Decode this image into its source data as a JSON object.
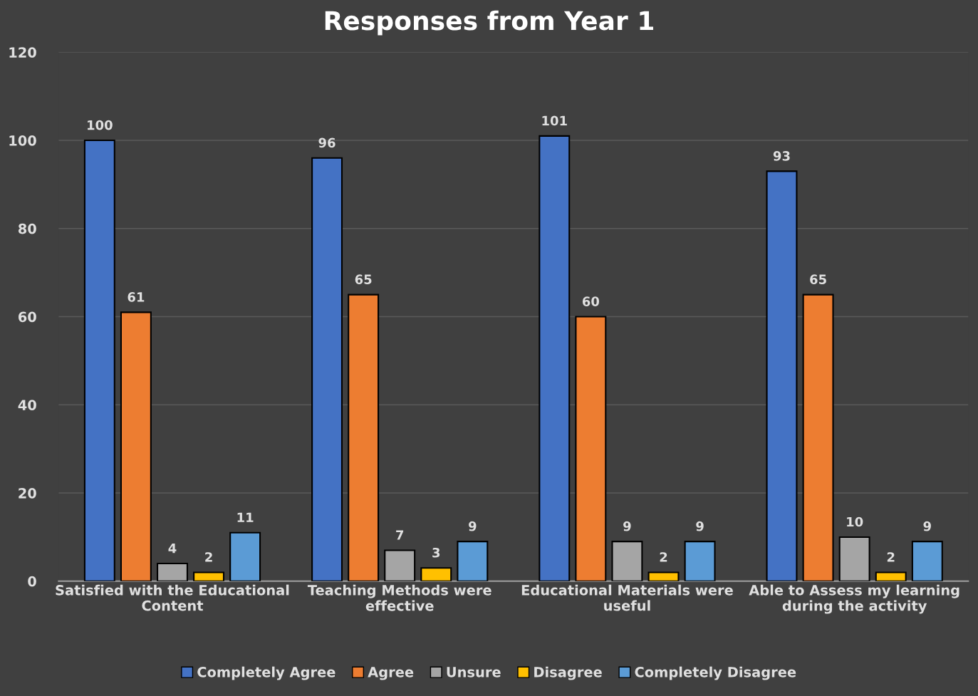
{
  "chart_data": {
    "type": "bar",
    "title": "Responses from Year 1",
    "categories": [
      "Satisfied with the Educational Content",
      "Teaching Methods were effective",
      "Educational Materials were useful",
      "Able to Assess my learning during the activity"
    ],
    "series": [
      {
        "name": "Completely Agree",
        "color": "#4472c4",
        "values": [
          100,
          96,
          101,
          93
        ]
      },
      {
        "name": "Agree",
        "color": "#ed7d31",
        "values": [
          61,
          65,
          60,
          65
        ]
      },
      {
        "name": "Unsure",
        "color": "#a5a5a5",
        "values": [
          4,
          7,
          9,
          10
        ]
      },
      {
        "name": "Disagree",
        "color": "#ffc000",
        "values": [
          2,
          3,
          2,
          2
        ]
      },
      {
        "name": "Completely Disagree",
        "color": "#5b9bd5",
        "values": [
          11,
          9,
          9,
          9
        ]
      }
    ],
    "ylim": [
      0,
      120
    ],
    "yticks": [
      0,
      20,
      40,
      60,
      80,
      100,
      120
    ],
    "grid": "y",
    "legend": "bottom",
    "data_labels": true
  }
}
